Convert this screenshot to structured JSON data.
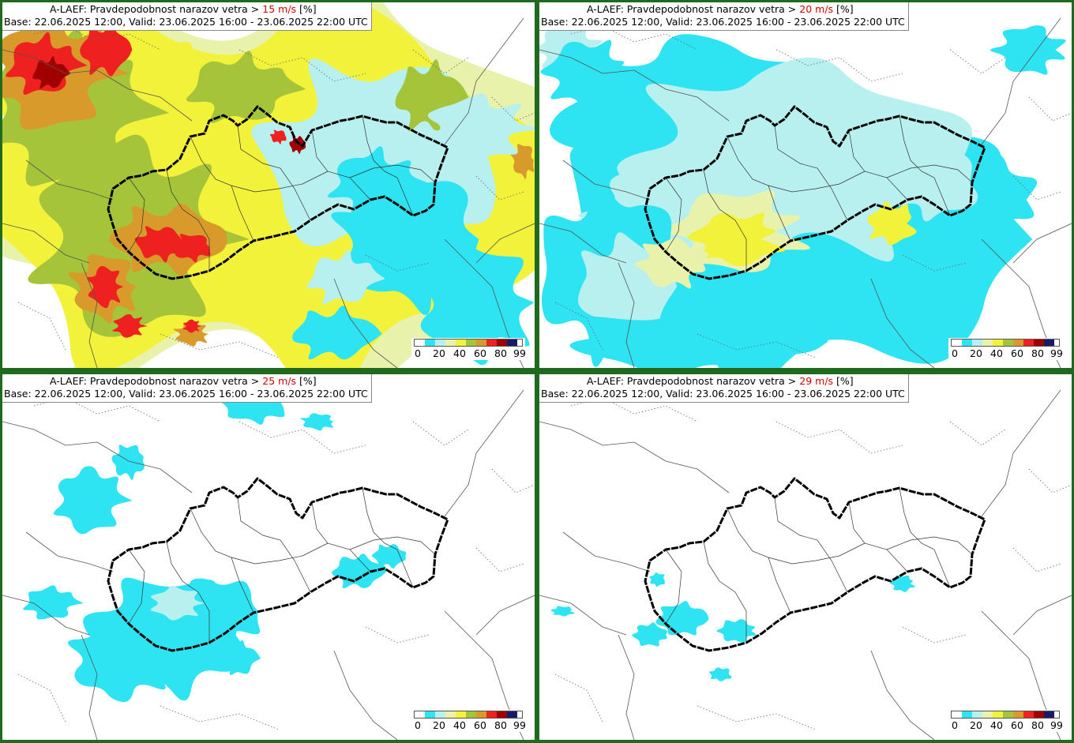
{
  "title_prefix": "A-LAEF: Pravdepodobnost narazov vetra > ",
  "title_suffix": " [%]",
  "base_valid": "Base: 22.06.2025 12:00, Valid: 23.06.2025 16:00 - 23.06.2025 22:00 UTC",
  "panels": [
    {
      "threshold": "15 m/s"
    },
    {
      "threshold": "20 m/s"
    },
    {
      "threshold": "25 m/s"
    },
    {
      "threshold": "29 m/s"
    }
  ],
  "legend": {
    "colors": [
      "#ffffff",
      "#2ee3f2",
      "#b8f0f0",
      "#e8f2aa",
      "#f2f23a",
      "#a6c43a",
      "#d89a2a",
      "#ee2020",
      "#a00000",
      "#1a1a6a"
    ],
    "labels": [
      "0",
      "20",
      "40",
      "60",
      "80",
      "99"
    ]
  },
  "colors": {
    "frame": "#1f6a1f",
    "threshold": "#d40000",
    "border_slovakia": "#000000"
  }
}
